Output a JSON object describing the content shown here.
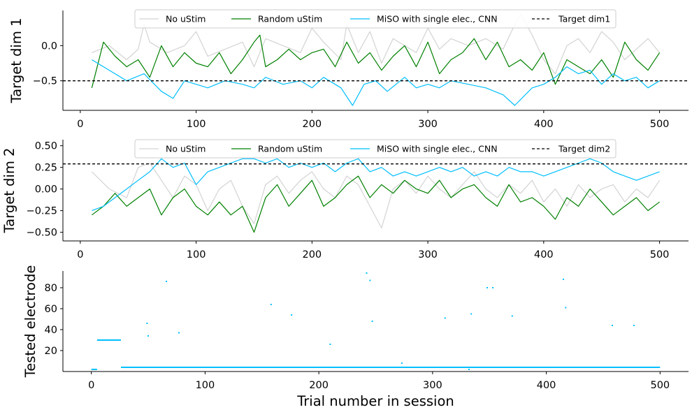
{
  "chart_data": [
    {
      "type": "line",
      "ylabel": "Target dim 1",
      "xlabel": "",
      "xlim": [
        -15,
        525
      ],
      "ylim": [
        -0.92,
        0.5
      ],
      "xticks": [
        0,
        100,
        200,
        300,
        400,
        500
      ],
      "yticks": [
        0.0,
        -0.5
      ],
      "ytick_labels": [
        "0.0",
        "−0.5"
      ],
      "grid": false,
      "legend_position": "top-center",
      "series": [
        {
          "name": "No uStim",
          "color": "#d3d3d3",
          "style": "solid",
          "x": [
            10,
            25,
            40,
            50,
            55,
            60,
            75,
            90,
            100,
            110,
            125,
            140,
            150,
            160,
            175,
            190,
            200,
            210,
            225,
            230,
            240,
            250,
            260,
            270,
            280,
            290,
            300,
            310,
            320,
            335,
            350,
            365,
            375,
            380,
            390,
            400,
            410,
            420,
            430,
            440,
            450,
            460,
            470,
            480,
            490,
            500
          ],
          "y": [
            -0.1,
            0.0,
            -0.2,
            -0.05,
            0.3,
            0.05,
            -0.1,
            0.0,
            0.2,
            -0.15,
            -0.05,
            0.05,
            -0.3,
            0.1,
            0.0,
            -0.1,
            0.25,
            0.05,
            -0.2,
            0.3,
            -0.1,
            0.2,
            -0.25,
            0.1,
            0.0,
            -0.1,
            0.25,
            -0.05,
            0.1,
            0.0,
            0.1,
            -0.05,
            0.3,
            0.45,
            0.15,
            -0.2,
            -0.4,
            0.0,
            0.1,
            -0.1,
            0.2,
            0.05,
            -0.2,
            -0.05,
            0.1,
            -0.1
          ]
        },
        {
          "name": "Random uStim",
          "color": "#008000",
          "style": "solid",
          "x": [
            10,
            20,
            30,
            40,
            50,
            60,
            70,
            80,
            90,
            100,
            110,
            120,
            130,
            140,
            150,
            155,
            160,
            170,
            180,
            190,
            200,
            210,
            220,
            230,
            240,
            250,
            260,
            270,
            280,
            290,
            300,
            310,
            320,
            330,
            340,
            350,
            360,
            370,
            380,
            390,
            400,
            410,
            420,
            430,
            440,
            450,
            460,
            470,
            480,
            490,
            500
          ],
          "y": [
            -0.6,
            0.05,
            -0.15,
            -0.3,
            -0.2,
            -0.45,
            0.0,
            -0.3,
            -0.1,
            -0.25,
            -0.3,
            -0.1,
            -0.4,
            -0.2,
            0.05,
            0.15,
            -0.3,
            -0.2,
            -0.05,
            -0.2,
            -0.1,
            -0.05,
            -0.3,
            0.05,
            -0.25,
            -0.1,
            -0.35,
            -0.15,
            0.0,
            -0.3,
            0.05,
            -0.4,
            -0.2,
            -0.1,
            0.1,
            -0.2,
            0.05,
            -0.3,
            -0.2,
            -0.35,
            -0.1,
            -0.55,
            -0.2,
            -0.3,
            -0.4,
            -0.2,
            -0.45,
            0.05,
            -0.2,
            -0.35,
            -0.1
          ]
        },
        {
          "name": "MiSO with single elec., CNN",
          "color": "#00bfff",
          "style": "solid",
          "x": [
            10,
            25,
            40,
            55,
            70,
            80,
            90,
            100,
            110,
            125,
            140,
            150,
            160,
            175,
            190,
            200,
            210,
            225,
            235,
            245,
            255,
            265,
            280,
            290,
            300,
            310,
            320,
            335,
            350,
            365,
            375,
            390,
            400,
            410,
            420,
            430,
            440,
            450,
            460,
            470,
            480,
            490,
            500
          ],
          "y": [
            -0.2,
            -0.35,
            -0.5,
            -0.4,
            -0.65,
            -0.75,
            -0.5,
            -0.55,
            -0.6,
            -0.5,
            -0.55,
            -0.6,
            -0.45,
            -0.55,
            -0.5,
            -0.6,
            -0.45,
            -0.6,
            -0.85,
            -0.55,
            -0.5,
            -0.65,
            -0.45,
            -0.6,
            -0.55,
            -0.6,
            -0.5,
            -0.55,
            -0.6,
            -0.7,
            -0.85,
            -0.6,
            -0.55,
            -0.45,
            -0.3,
            -0.4,
            -0.35,
            -0.55,
            -0.4,
            -0.5,
            -0.45,
            -0.6,
            -0.5
          ]
        },
        {
          "name": "Target dim1",
          "color": "#000000",
          "style": "dashed",
          "hline": -0.5
        }
      ]
    },
    {
      "type": "line",
      "ylabel": "Target dim 2",
      "xlabel": "",
      "xlim": [
        -15,
        525
      ],
      "ylim": [
        -0.6,
        0.57
      ],
      "xticks": [
        0,
        100,
        200,
        300,
        400,
        500
      ],
      "yticks": [
        0.5,
        0.25,
        0.0,
        -0.25,
        -0.5
      ],
      "ytick_labels": [
        "0.50",
        "0.25",
        "0.00",
        "−0.25",
        "−0.50"
      ],
      "grid": false,
      "legend_position": "top-center",
      "series": [
        {
          "name": "No uStim",
          "color": "#d3d3d3",
          "style": "solid",
          "x": [
            10,
            25,
            40,
            50,
            60,
            70,
            80,
            90,
            100,
            110,
            120,
            130,
            140,
            150,
            160,
            170,
            180,
            190,
            200,
            210,
            220,
            230,
            240,
            250,
            260,
            270,
            280,
            290,
            300,
            310,
            320,
            330,
            340,
            350,
            360,
            370,
            380,
            390,
            400,
            410,
            420,
            430,
            440,
            450,
            460,
            470,
            480,
            490,
            500
          ],
          "y": [
            0.2,
            0.0,
            -0.1,
            0.25,
            0.3,
            0.1,
            -0.1,
            0.15,
            0.05,
            -0.25,
            0.0,
            0.1,
            -0.2,
            -0.4,
            0.05,
            0.15,
            -0.05,
            0.1,
            0.2,
            0.0,
            -0.1,
            0.15,
            0.05,
            -0.2,
            -0.45,
            0.0,
            0.1,
            -0.05,
            0.15,
            0.0,
            -0.1,
            0.05,
            0.2,
            0.0,
            -0.1,
            0.05,
            -0.05,
            0.1,
            -0.15,
            0.0,
            -0.2,
            0.05,
            -0.1,
            0.0,
            0.05,
            -0.15,
            0.0,
            -0.1,
            0.1
          ]
        },
        {
          "name": "Random uStim",
          "color": "#008000",
          "style": "solid",
          "x": [
            10,
            20,
            30,
            40,
            50,
            60,
            70,
            80,
            90,
            100,
            110,
            120,
            130,
            140,
            150,
            160,
            170,
            180,
            190,
            200,
            210,
            220,
            230,
            240,
            250,
            260,
            270,
            280,
            290,
            300,
            310,
            320,
            330,
            340,
            350,
            360,
            370,
            380,
            390,
            400,
            410,
            420,
            430,
            440,
            450,
            460,
            470,
            480,
            490,
            500
          ],
          "y": [
            -0.3,
            -0.2,
            -0.05,
            -0.2,
            -0.1,
            0.0,
            -0.3,
            -0.1,
            0.0,
            -0.2,
            -0.3,
            -0.15,
            -0.3,
            -0.2,
            -0.5,
            -0.1,
            0.05,
            -0.2,
            -0.05,
            0.1,
            -0.2,
            -0.1,
            0.05,
            0.15,
            -0.1,
            0.05,
            -0.05,
            0.1,
            0.0,
            -0.05,
            0.1,
            -0.1,
            0.0,
            0.05,
            -0.1,
            -0.2,
            0.05,
            -0.15,
            -0.1,
            -0.2,
            -0.35,
            -0.1,
            -0.2,
            0.0,
            -0.15,
            -0.3,
            -0.2,
            -0.1,
            -0.25,
            -0.15
          ]
        },
        {
          "name": "MiSO with single elec., CNN",
          "color": "#00bfff",
          "style": "solid",
          "x": [
            10,
            20,
            30,
            40,
            50,
            60,
            70,
            80,
            90,
            100,
            110,
            120,
            130,
            140,
            150,
            160,
            170,
            180,
            190,
            200,
            210,
            220,
            230,
            240,
            250,
            260,
            270,
            280,
            290,
            300,
            310,
            320,
            330,
            340,
            350,
            360,
            370,
            380,
            390,
            400,
            410,
            420,
            430,
            440,
            450,
            460,
            470,
            480,
            490,
            500
          ],
          "y": [
            -0.25,
            -0.2,
            -0.1,
            0.0,
            0.1,
            0.2,
            0.35,
            0.25,
            0.3,
            0.05,
            0.2,
            0.25,
            0.3,
            0.35,
            0.35,
            0.3,
            0.35,
            0.25,
            0.3,
            0.25,
            0.3,
            0.2,
            0.3,
            0.35,
            0.2,
            0.25,
            0.15,
            0.2,
            0.15,
            0.2,
            0.25,
            0.2,
            0.25,
            0.15,
            0.2,
            0.15,
            0.25,
            0.2,
            0.2,
            0.15,
            0.2,
            0.25,
            0.3,
            0.35,
            0.3,
            0.2,
            0.15,
            0.1,
            0.15,
            0.2
          ]
        },
        {
          "name": "Target dim2",
          "color": "#000000",
          "style": "dashed",
          "hline": 0.29
        }
      ]
    },
    {
      "type": "scatter",
      "ylabel": "Tested electrode",
      "xlabel": "Trial number in session",
      "xlim": [
        -25,
        525
      ],
      "ylim": [
        0,
        96
      ],
      "xticks": [
        0,
        100,
        200,
        300,
        400,
        500
      ],
      "yticks": [
        80,
        60,
        40,
        20
      ],
      "ytick_labels": [
        "80",
        "60",
        "40",
        "20"
      ],
      "grid": false,
      "series": [
        {
          "name": "",
          "color": "#00bfff",
          "marker": "small-dash",
          "segments": [
            {
              "x": [
                0,
                5
              ],
              "y": 2
            },
            {
              "x": [
                5,
                26
              ],
              "y": 30
            },
            {
              "x": [
                26,
                500
              ],
              "y": 4
            }
          ],
          "points": [
            {
              "x": 49,
              "y": 46
            },
            {
              "x": 50,
              "y": 34
            },
            {
              "x": 66,
              "y": 86
            },
            {
              "x": 77,
              "y": 37
            },
            {
              "x": 158,
              "y": 64
            },
            {
              "x": 176,
              "y": 54
            },
            {
              "x": 210,
              "y": 26
            },
            {
              "x": 242,
              "y": 94
            },
            {
              "x": 245,
              "y": 87
            },
            {
              "x": 247,
              "y": 48
            },
            {
              "x": 273,
              "y": 8
            },
            {
              "x": 311,
              "y": 51
            },
            {
              "x": 332,
              "y": 2
            },
            {
              "x": 334,
              "y": 55
            },
            {
              "x": 348,
              "y": 80
            },
            {
              "x": 353,
              "y": 80
            },
            {
              "x": 370,
              "y": 53
            },
            {
              "x": 415,
              "y": 88
            },
            {
              "x": 417,
              "y": 61
            },
            {
              "x": 458,
              "y": 44
            },
            {
              "x": 477,
              "y": 44
            }
          ]
        }
      ]
    }
  ]
}
